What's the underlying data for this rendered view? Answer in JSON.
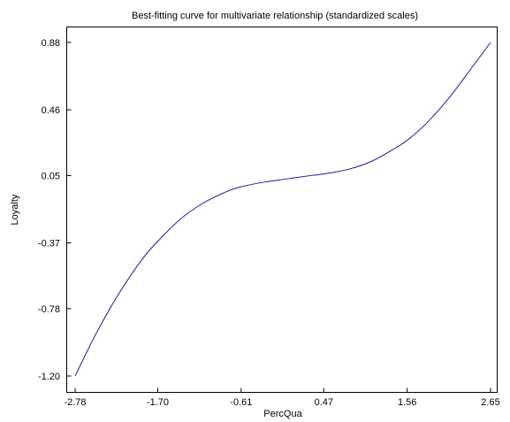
{
  "chart_data": {
    "type": "line",
    "title": "Best-fitting curve for multivariate relationship (standardized scales)",
    "xlabel": "PercQua",
    "ylabel": "Loyalty",
    "xlim": [
      -2.78,
      2.65
    ],
    "ylim": [
      -1.2,
      0.88
    ],
    "x_ticks": [
      "-2.78",
      "-1.70",
      "-0.61",
      "0.47",
      "1.56",
      "2.65"
    ],
    "y_ticks": [
      "0.88",
      "0.46",
      "0.05",
      "-0.37",
      "-0.78",
      "-1.20"
    ],
    "grid": false,
    "series_color": "#1a1aa6",
    "x": [
      -2.78,
      -2.5,
      -2.2,
      -1.9,
      -1.7,
      -1.4,
      -1.1,
      -0.8,
      -0.61,
      -0.3,
      0.0,
      0.3,
      0.47,
      0.8,
      1.1,
      1.4,
      1.56,
      1.8,
      2.1,
      2.4,
      2.65
    ],
    "y": [
      -1.2,
      -0.93,
      -0.68,
      -0.47,
      -0.36,
      -0.22,
      -0.12,
      -0.05,
      -0.02,
      0.01,
      0.03,
      0.05,
      0.06,
      0.09,
      0.14,
      0.22,
      0.27,
      0.37,
      0.53,
      0.72,
      0.88
    ]
  }
}
